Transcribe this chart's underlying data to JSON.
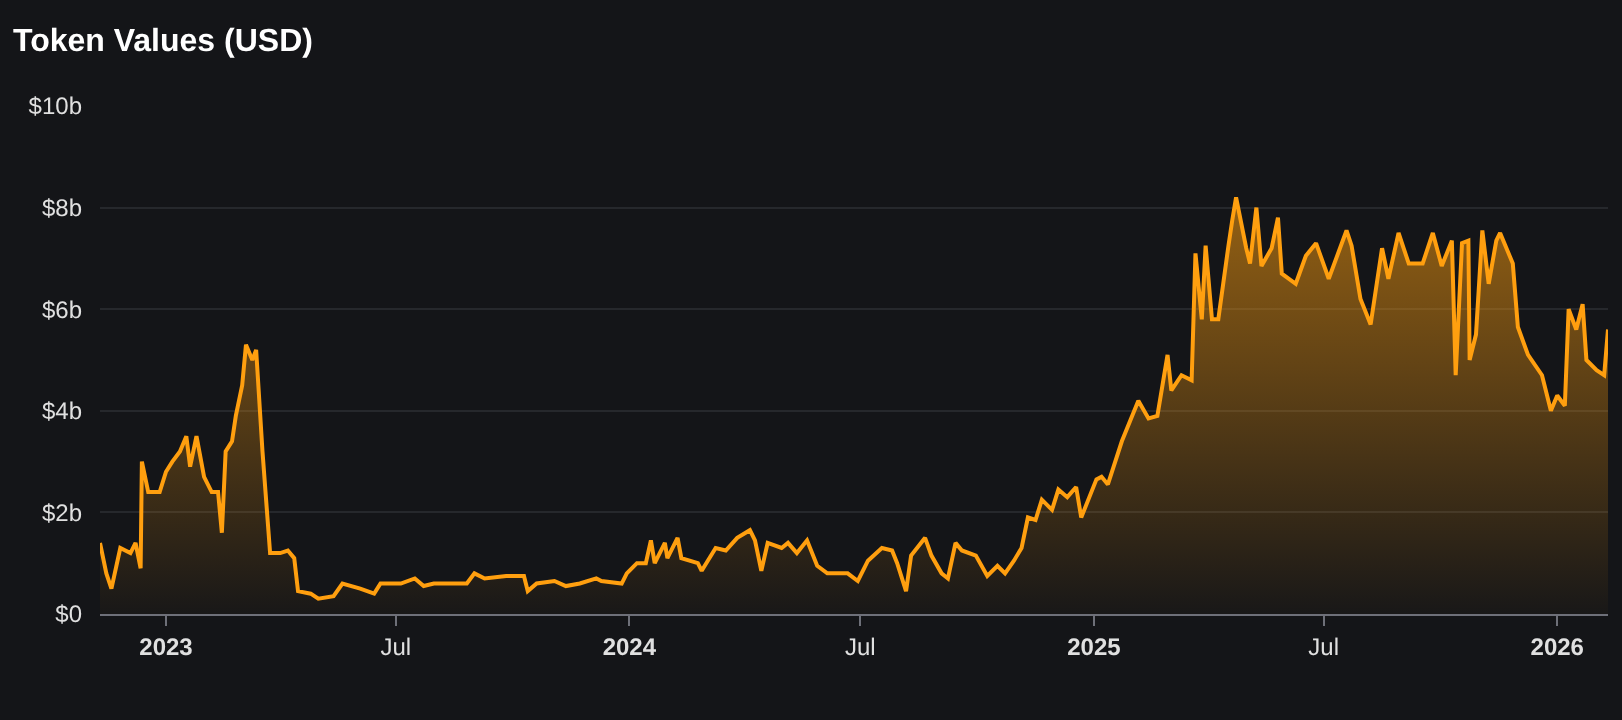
{
  "chart_data": {
    "type": "area",
    "title": "Token Values (USD)",
    "x": [
      "2022-11-10",
      "2022-11-15",
      "2022-11-19",
      "2022-11-26",
      "2022-12-04",
      "2022-12-08",
      "2022-12-12",
      "2022-12-13",
      "2022-12-18",
      "2022-12-27",
      "2023-01-01",
      "2023-01-06",
      "2023-01-12",
      "2023-01-17",
      "2023-01-20",
      "2023-01-25",
      "2023-01-31",
      "2023-02-06",
      "2023-02-11",
      "2023-02-14",
      "2023-02-17",
      "2023-02-22",
      "2023-02-25",
      "2023-03-02",
      "2023-03-05",
      "2023-03-10",
      "2023-03-13",
      "2023-03-18",
      "2023-03-24",
      "2023-04-01",
      "2023-04-07",
      "2023-04-12",
      "2023-04-15",
      "2023-04-25",
      "2023-05-01",
      "2023-05-13",
      "2023-05-20",
      "2023-06-03",
      "2023-06-14",
      "2023-06-19",
      "2023-07-05",
      "2023-07-16",
      "2023-07-23",
      "2023-07-31",
      "2023-08-13",
      "2023-08-26",
      "2023-09-01",
      "2023-09-09",
      "2023-09-26",
      "2023-10-10",
      "2023-10-13",
      "2023-10-20",
      "2023-11-03",
      "2023-11-12",
      "2023-11-23",
      "2023-12-06",
      "2023-12-10",
      "2023-12-26",
      "2023-12-30",
      "2024-01-07",
      "2024-01-14",
      "2024-01-18",
      "2024-01-21",
      "2024-01-29",
      "2024-01-31",
      "2024-02-08",
      "2024-02-11",
      "2024-02-24",
      "2024-02-27",
      "2024-03-09",
      "2024-03-17",
      "2024-03-26",
      "2024-04-05",
      "2024-04-09",
      "2024-04-14",
      "2024-04-19",
      "2024-04-30",
      "2024-05-05",
      "2024-05-12",
      "2024-05-20",
      "2024-05-28",
      "2024-06-05",
      "2024-06-21",
      "2024-06-29",
      "2024-07-07",
      "2024-07-18",
      "2024-07-26",
      "2024-07-30",
      "2024-08-06",
      "2024-08-10",
      "2024-08-21",
      "2024-08-26",
      "2024-09-03",
      "2024-09-08",
      "2024-09-14",
      "2024-09-19",
      "2024-09-30",
      "2024-10-09",
      "2024-10-17",
      "2024-10-23",
      "2024-10-30",
      "2024-11-05",
      "2024-11-10",
      "2024-11-16",
      "2024-11-21",
      "2024-11-29",
      "2024-12-04",
      "2024-12-11",
      "2024-12-18",
      "2024-12-22",
      "2025-01-03",
      "2025-01-07",
      "2025-01-12",
      "2025-01-23",
      "2025-02-05",
      "2025-02-13",
      "2025-02-20",
      "2025-02-28",
      "2025-03-03",
      "2025-03-11",
      "2025-03-19",
      "2025-03-22",
      "2025-03-27",
      "2025-03-30",
      "2025-04-04",
      "2025-04-09",
      "2025-04-17",
      "2025-04-20",
      "2025-04-23",
      "2025-05-01",
      "2025-05-04",
      "2025-05-09",
      "2025-05-13",
      "2025-05-21",
      "2025-05-26",
      "2025-05-29",
      "2025-06-09",
      "2025-06-17",
      "2025-06-25",
      "2025-07-05",
      "2025-07-19",
      "2025-07-23",
      "2025-07-30",
      "2025-08-07",
      "2025-08-16",
      "2025-08-21",
      "2025-08-29",
      "2025-09-06",
      "2025-09-17",
      "2025-09-25",
      "2025-10-02",
      "2025-10-10",
      "2025-10-13",
      "2025-10-18",
      "2025-10-23",
      "2025-10-24",
      "2025-10-29",
      "2025-11-03",
      "2025-11-08",
      "2025-11-14",
      "2025-11-17",
      "2025-11-27",
      "2025-12-01",
      "2025-12-09",
      "2025-12-20",
      "2025-12-27",
      "2026-01-01",
      "2026-01-07",
      "2026-01-10",
      "2026-01-16",
      "2026-01-21",
      "2026-01-24",
      "2026-02-01",
      "2026-02-07",
      "2026-02-10"
    ],
    "series": [
      {
        "color": "#ff9f0f",
        "values": [
          1.4,
          0.8,
          0.5,
          1.3,
          1.2,
          1.4,
          0.9,
          3.0,
          2.4,
          2.4,
          2.8,
          3.0,
          3.2,
          3.5,
          2.9,
          3.5,
          2.7,
          2.4,
          2.4,
          1.6,
          3.2,
          3.4,
          3.9,
          4.5,
          5.3,
          5.0,
          5.2,
          3.2,
          1.2,
          1.2,
          1.25,
          1.1,
          0.45,
          0.4,
          0.3,
          0.35,
          0.6,
          0.5,
          0.4,
          0.6,
          0.6,
          0.7,
          0.55,
          0.6,
          0.6,
          0.6,
          0.8,
          0.7,
          0.75,
          0.75,
          0.45,
          0.6,
          0.65,
          0.55,
          0.6,
          0.7,
          0.65,
          0.6,
          0.8,
          1.0,
          1.0,
          1.45,
          1.0,
          1.4,
          1.1,
          1.5,
          1.1,
          1.0,
          0.85,
          1.3,
          1.25,
          1.5,
          1.65,
          1.45,
          0.85,
          1.4,
          1.3,
          1.4,
          1.2,
          1.45,
          0.95,
          0.8,
          0.8,
          0.65,
          1.05,
          1.3,
          1.25,
          1.0,
          0.45,
          1.15,
          1.5,
          1.15,
          0.8,
          0.7,
          1.4,
          1.25,
          1.15,
          0.75,
          0.95,
          0.8,
          1.05,
          1.3,
          1.9,
          1.85,
          2.25,
          2.05,
          2.45,
          2.3,
          2.5,
          1.9,
          2.65,
          2.7,
          2.55,
          3.4,
          4.2,
          3.85,
          3.9,
          5.1,
          4.4,
          4.7,
          4.6,
          7.1,
          5.8,
          7.25,
          5.8,
          5.8,
          7.25,
          7.75,
          8.2,
          7.2,
          6.9,
          8.0,
          6.85,
          7.2,
          7.8,
          6.7,
          6.5,
          7.05,
          7.3,
          6.6,
          7.55,
          7.25,
          6.2,
          5.7,
          7.2,
          6.6,
          7.5,
          6.9,
          6.9,
          7.5,
          6.85,
          7.35,
          4.7,
          7.3,
          7.35,
          5.0,
          5.5,
          7.55,
          6.5,
          7.35,
          7.5,
          6.9,
          5.65,
          5.1,
          4.7,
          4.0,
          4.3,
          4.1,
          6.0,
          5.6,
          6.1,
          5.0,
          4.8,
          4.7,
          5.6
        ]
      }
    ],
    "xlim": [
      "2022-11-10",
      "2026-02-10"
    ],
    "xticks": [
      {
        "value": "2023-01-01",
        "label": "2023"
      },
      {
        "value": "2023-07-01",
        "label": "Jul"
      },
      {
        "value": "2024-01-01",
        "label": "2024"
      },
      {
        "value": "2024-07-01",
        "label": "Jul"
      },
      {
        "value": "2025-01-01",
        "label": "2025"
      },
      {
        "value": "2025-07-01",
        "label": "Jul"
      },
      {
        "value": "2026-01-01",
        "label": "2026"
      }
    ],
    "ylim": [
      0,
      10
    ],
    "yticks": [
      {
        "value": 0,
        "label": "$0"
      },
      {
        "value": 2,
        "label": "$2b"
      },
      {
        "value": 4,
        "label": "$4b"
      },
      {
        "value": 6,
        "label": "$6b"
      },
      {
        "value": 8,
        "label": "$8b"
      },
      {
        "value": 10,
        "label": "$10b"
      }
    ],
    "grid": "y"
  }
}
